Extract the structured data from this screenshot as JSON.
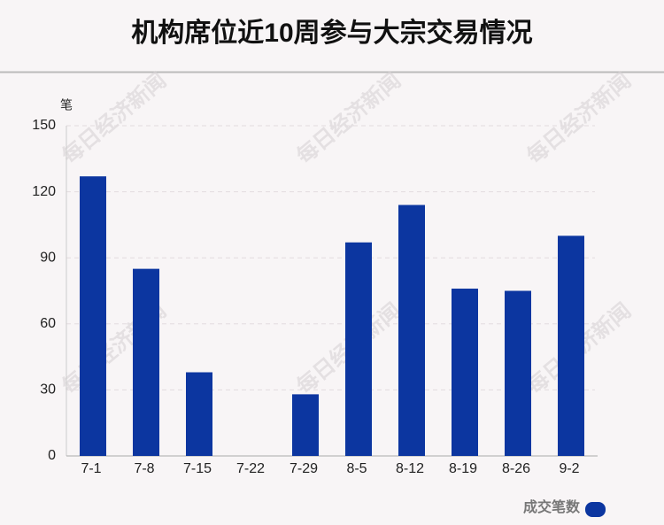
{
  "chart_data": {
    "type": "bar",
    "title": "机构席位近10周参与大宗交易情况",
    "y_label": "笔",
    "categories": [
      "7-1",
      "7-8",
      "7-15",
      "7-22",
      "7-29",
      "8-5",
      "8-12",
      "8-19",
      "8-26",
      "9-2"
    ],
    "series": [
      {
        "name": "成交笔数",
        "color": "#0c36a0",
        "values": [
          127,
          85,
          38,
          0,
          28,
          97,
          114,
          76,
          75,
          100
        ]
      }
    ],
    "ylim": [
      0,
      150
    ],
    "yticks": [
      0,
      30,
      60,
      90,
      120,
      150
    ],
    "grid": true,
    "legend": "bottom-right",
    "watermark": "每日经济新闻"
  }
}
